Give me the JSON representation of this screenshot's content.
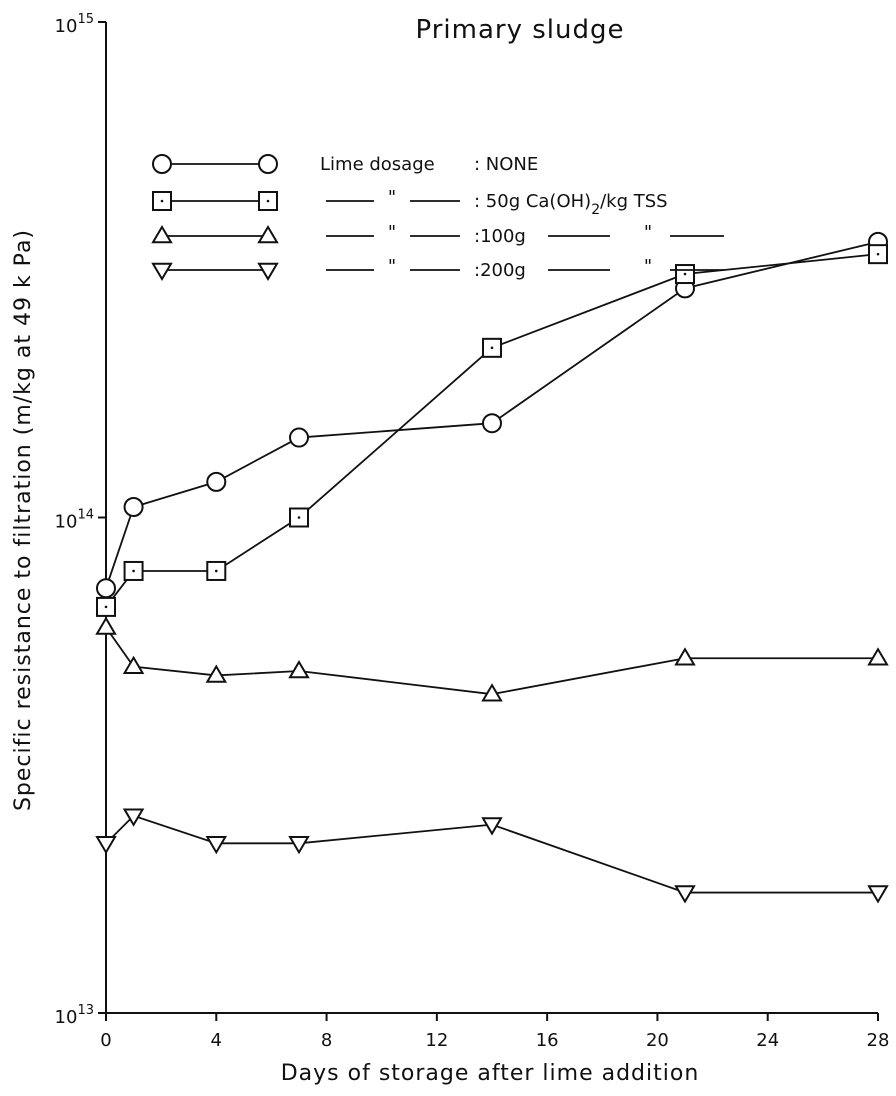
{
  "chart_data": {
    "type": "line",
    "title": "Primary sludge",
    "xlabel": "Days of storage after lime addition",
    "ylabel": "Specific resistance to filtration (m/kg at 49 k Pa)",
    "xlim": [
      0,
      28
    ],
    "ylim": [
      10000000000000.0,
      1000000000000000.0
    ],
    "yscale": "log",
    "x_ticks": [
      "0",
      "4",
      "8",
      "12",
      "16",
      "20",
      "24",
      "28"
    ],
    "y_ticks": [
      {
        "base": "10",
        "exp": "13",
        "value": 10000000000000.0
      },
      {
        "base": "10",
        "exp": "14",
        "value": 100000000000000.0
      },
      {
        "base": "10",
        "exp": "15",
        "value": 1000000000000000.0
      }
    ],
    "legend": {
      "heading": "Lime dosage",
      "placement": "top-left"
    },
    "series": [
      {
        "name": "NONE",
        "legend_text": ": NONE",
        "marker": "circle",
        "x": [
          0,
          1,
          4,
          7,
          14,
          21,
          28
        ],
        "y": [
          72000000000000.0,
          105000000000000.0,
          118000000000000.0,
          145000000000000.0,
          155000000000000.0,
          290000000000000.0,
          360000000000000.0
        ]
      },
      {
        "name": "50g Ca(OH)2/kg TSS",
        "legend_text": ": 50g Ca(OH)",
        "legend_sub": "2",
        "legend_tail": "/kg TSS",
        "marker": "square",
        "x": [
          0,
          1,
          4,
          7,
          14,
          21,
          28
        ],
        "y": [
          66000000000000.0,
          78000000000000.0,
          78000000000000.0,
          100000000000000.0,
          220000000000000.0,
          310000000000000.0,
          340000000000000.0
        ]
      },
      {
        "name": "100g",
        "legend_text": ":100g",
        "marker": "triangle-up",
        "x": [
          0,
          1,
          4,
          7,
          14,
          21,
          28
        ],
        "y": [
          60000000000000.0,
          50000000000000.0,
          48000000000000.0,
          49000000000000.0,
          44000000000000.0,
          52000000000000.0,
          52000000000000.0
        ]
      },
      {
        "name": "200g",
        "legend_text": ":200g",
        "marker": "triangle-down",
        "x": [
          0,
          1,
          4,
          7,
          14,
          21,
          28
        ],
        "y": [
          22000000000000.0,
          25000000000000.0,
          22000000000000.0,
          22000000000000.0,
          24000000000000.0,
          17500000000000.0,
          17500000000000.0
        ]
      }
    ],
    "ditto_mark": "\""
  }
}
